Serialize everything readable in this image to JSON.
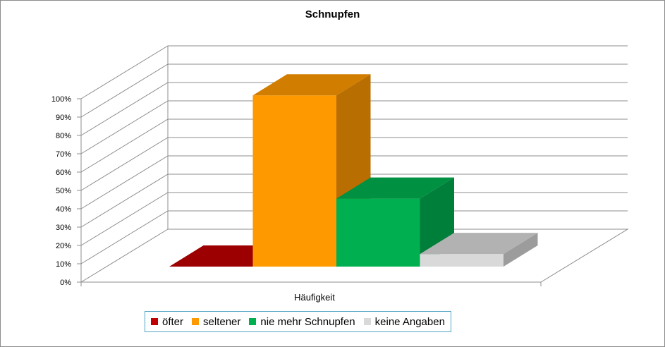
{
  "chart_data": {
    "type": "bar",
    "title": "Schnupfen",
    "categories": [
      "Häufigkeit"
    ],
    "series": [
      {
        "name": "öfter",
        "values": [
          0
        ],
        "color": "#c00000"
      },
      {
        "name": "seltener",
        "values": [
          68
        ],
        "color": "#ff9900"
      },
      {
        "name": "nie mehr Schnupfen",
        "values": [
          27
        ],
        "color": "#00b050"
      },
      {
        "name": "keine Angaben",
        "values": [
          5
        ],
        "color": "#d9d9d9"
      }
    ],
    "y_ticks": [
      "0%",
      "10%",
      "20%",
      "30%",
      "40%",
      "50%",
      "60%",
      "70%",
      "80%",
      "90%",
      "100%"
    ],
    "ylim": [
      0,
      100
    ],
    "grid": true,
    "legend_position": "bottom"
  }
}
